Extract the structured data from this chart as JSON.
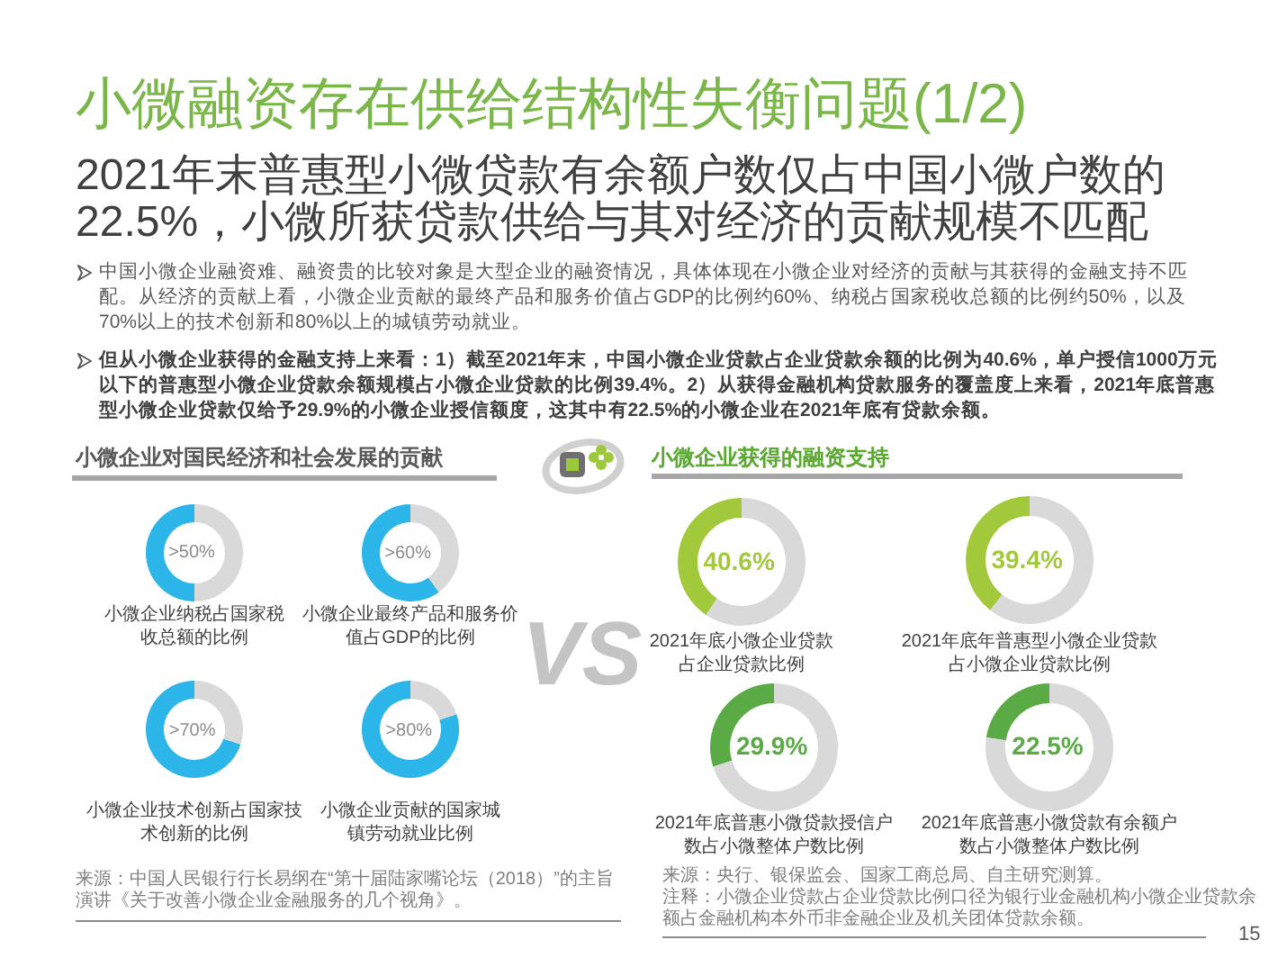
{
  "chart_data": [
    {
      "type": "other",
      "title": "小微融资存在供给结构性失衡问题(1/2)",
      "subtitle": "2021年末普惠型小微贷款有余额户数仅占中国小微户数的22.5%，小微所获贷款供给与其对经济的贡献规模不匹配",
      "annotations": [
        "中国小微企业融资难、融资贵的比较对象是大型企业的融资情况，具体体现在小微企业对经济的贡献与其获得的金融支持不匹配。从经济的贡献上看，小微企业贡献的最终产品和服务价值占GDP的比例约60%、纳税占国家税收总额的比例约50%，以及70%以上的技术创新和80%以上的城镇劳动就业。",
        "但从小微企业获得的金融支持上来看：1）截至2021年末，中国小微企业贷款占企业贷款余额的比例为40.6%，单户授信1000万元以下的普惠型小微企业贷款余额规模占小微企业贷款的比例39.4%。2）从获得金融机构贷款服务的覆盖度上来看，2021年底普惠型小微企业贷款仅给予29.9%的小微企业授信额度，这其中有22.5%的小微企业在2021年底有贷款余额。"
      ]
    },
    {
      "type": "other",
      "title": "小微企业对国民经济和社会发展的贡献",
      "annotations": [
        "来源：中国人民银行行长易纲在“第十届陆家嘴论坛（2018）”的主旨演讲《关于改善小微企业金融服务的几个视角》。"
      ]
    },
    {
      "type": "donut",
      "title": "小微企业纳税占国家税收总额的比例",
      "categories": [
        null,
        null
      ],
      "values": [
        50,
        50
      ],
      "colors": [
        "#2bb5e9",
        "#d9d9d9"
      ],
      "value_labels": [
        ">50%",
        null
      ]
    },
    {
      "type": "donut",
      "title": "小微企业最终产品和服务价值占GDP的比例",
      "categories": [
        null,
        null
      ],
      "values": [
        60,
        40
      ],
      "colors": [
        "#2bb5e9",
        "#d9d9d9"
      ],
      "value_labels": [
        ">60%",
        null
      ]
    },
    {
      "type": "donut",
      "title": "小微企业技术创新占国家技术创新的比例",
      "categories": [
        null,
        null
      ],
      "values": [
        70,
        30
      ],
      "colors": [
        "#2bb5e9",
        "#d9d9d9"
      ],
      "value_labels": [
        ">70%",
        null
      ]
    },
    {
      "type": "donut",
      "title": "小微企业贡献的国家城镇劳动就业比例",
      "categories": [
        null,
        null
      ],
      "values": [
        80,
        20
      ],
      "colors": [
        "#2bb5e9",
        "#d9d9d9"
      ],
      "value_labels": [
        ">80%",
        null
      ]
    },
    {
      "type": "other",
      "title": "小微企业获得的融资支持",
      "annotations": [
        "VS",
        "来源：央行、银保监会、国家工商总局、自主研究测算。",
        "注释：小微企业贷款占企业贷款比例口径为银行业金融机构小微企业贷款余额占金融机构本外币非金融企业及机关团体贷款余额。",
        "15"
      ]
    },
    {
      "type": "donut",
      "title": "2021年底小微企业贷款占企业贷款比例",
      "categories": [
        null,
        null
      ],
      "values": [
        40.6,
        59.4
      ],
      "colors": [
        "#a2c83c",
        "#d9d9d9"
      ],
      "value_labels": [
        "40.6%",
        null
      ]
    },
    {
      "type": "donut",
      "title": "2021年底年普惠型小微企业贷款占小微企业贷款比例",
      "categories": [
        null,
        null
      ],
      "values": [
        39.4,
        60.6
      ],
      "colors": [
        "#a2c83c",
        "#d9d9d9"
      ],
      "value_labels": [
        "39.4%",
        null
      ]
    },
    {
      "type": "donut",
      "title": "2021年底普惠小微贷款授信户数占小微整体户数比例",
      "categories": [
        null,
        null
      ],
      "values": [
        29.9,
        70.1
      ],
      "colors": [
        "#5aab46",
        "#d9d9d9"
      ],
      "value_labels": [
        "29.9%",
        null
      ]
    },
    {
      "type": "donut",
      "title": "2021年底普惠小微贷款有余额户数占小微整体户数比例",
      "categories": [
        null,
        null
      ],
      "values": [
        22.5,
        77.5
      ],
      "colors": [
        "#5aab46",
        "#d9d9d9"
      ],
      "value_labels": [
        "22.5%",
        null
      ]
    }
  ]
}
